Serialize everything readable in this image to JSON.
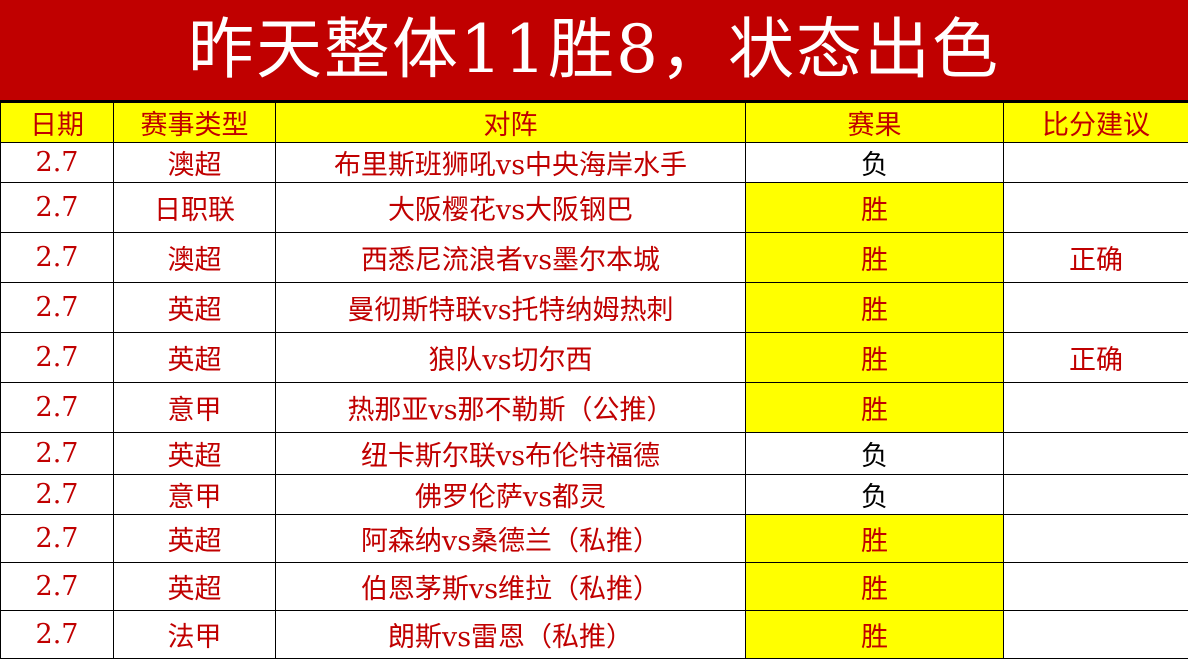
{
  "title": "昨天整体11胜8，状态出色",
  "colors": {
    "title_bg": "#c00000",
    "text": "#c00000",
    "highlight": "#ffff00"
  },
  "columns": [
    "日期",
    "赛事类型",
    "对阵",
    "赛果",
    "比分建议"
  ],
  "rows": [
    {
      "date": "2.7",
      "league": "澳超",
      "match": "布里斯班狮吼vs中央海岸水手",
      "result": "负",
      "score": ""
    },
    {
      "date": "2.7",
      "league": "日职联",
      "match": "大阪樱花vs大阪钢巴",
      "result": "胜",
      "score": ""
    },
    {
      "date": "2.7",
      "league": "澳超",
      "match": "西悉尼流浪者vs墨尔本城",
      "result": "胜",
      "score": "正确"
    },
    {
      "date": "2.7",
      "league": "英超",
      "match": "曼彻斯特联vs托特纳姆热刺",
      "result": "胜",
      "score": ""
    },
    {
      "date": "2.7",
      "league": "英超",
      "match": "狼队vs切尔西",
      "result": "胜",
      "score": "正确"
    },
    {
      "date": "2.7",
      "league": "意甲",
      "match": "热那亚vs那不勒斯（公推）",
      "result": "胜",
      "score": ""
    },
    {
      "date": "2.7",
      "league": "英超",
      "match": "纽卡斯尔联vs布伦特福德",
      "result": "负",
      "score": ""
    },
    {
      "date": "2.7",
      "league": "意甲",
      "match": "佛罗伦萨vs都灵",
      "result": "负",
      "score": ""
    },
    {
      "date": "2.7",
      "league": "英超",
      "match": "阿森纳vs桑德兰（私推）",
      "result": "胜",
      "score": ""
    },
    {
      "date": "2.7",
      "league": "英超",
      "match": "伯恩茅斯vs维拉（私推）",
      "result": "胜",
      "score": ""
    },
    {
      "date": "2.7",
      "league": "法甲",
      "match": "朗斯vs雷恩（私推）",
      "result": "胜",
      "score": ""
    }
  ]
}
